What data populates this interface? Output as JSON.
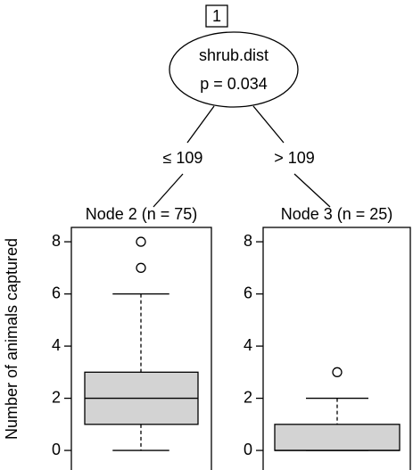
{
  "tree": {
    "nodes": [
      {
        "id": "1",
        "variable": "shrub.dist",
        "p_value": "p = 0.034"
      }
    ],
    "edges": [
      {
        "label": "≤ 109"
      },
      {
        "label": "> 109"
      }
    ]
  },
  "chart_data": [
    {
      "type": "box",
      "title": "Node 2 (n = 75)",
      "ylabel": "Number of animals captured",
      "ylim": [
        -0.75,
        8.55
      ],
      "yticks": [
        0,
        2,
        4,
        6,
        8
      ],
      "color": "#d3d3d3",
      "whisker_low": 0,
      "q1": 1,
      "median": 2,
      "q3": 3,
      "whisker_high": 6,
      "outliers": [
        7,
        8
      ]
    },
    {
      "type": "box",
      "title": "Node 3 (n = 25)",
      "ylim": [
        -0.75,
        8.55
      ],
      "yticks": [
        0,
        2,
        4,
        6,
        8
      ],
      "color": "#d3d3d3",
      "whisker_low": 0,
      "q1": 0,
      "median": 0,
      "q3": 1,
      "whisker_high": 2,
      "outliers": [
        3
      ]
    }
  ]
}
